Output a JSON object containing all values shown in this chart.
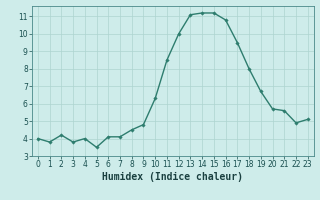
{
  "x": [
    0,
    1,
    2,
    3,
    4,
    5,
    6,
    7,
    8,
    9,
    10,
    11,
    12,
    13,
    14,
    15,
    16,
    17,
    18,
    19,
    20,
    21,
    22,
    23
  ],
  "y": [
    4.0,
    3.8,
    4.2,
    3.8,
    4.0,
    3.5,
    4.1,
    4.1,
    4.5,
    4.8,
    6.3,
    8.5,
    10.0,
    11.1,
    11.2,
    11.2,
    10.8,
    9.5,
    8.0,
    6.7,
    5.7,
    5.6,
    4.9,
    5.1
  ],
  "line_color": "#2e7d6e",
  "marker": "D",
  "marker_size": 1.8,
  "linewidth": 1.0,
  "xlabel": "Humidex (Indice chaleur)",
  "xlim": [
    -0.5,
    23.5
  ],
  "ylim": [
    3.0,
    11.6
  ],
  "yticks": [
    3,
    4,
    5,
    6,
    7,
    8,
    9,
    10,
    11
  ],
  "xticks": [
    0,
    1,
    2,
    3,
    4,
    5,
    6,
    7,
    8,
    9,
    10,
    11,
    12,
    13,
    14,
    15,
    16,
    17,
    18,
    19,
    20,
    21,
    22,
    23
  ],
  "background_color": "#ceecea",
  "grid_color": "#aed4d0",
  "tick_color": "#1a5050",
  "label_color": "#1a4040",
  "tick_fontsize": 5.5,
  "xlabel_fontsize": 7.0,
  "spine_color": "#4a8888"
}
